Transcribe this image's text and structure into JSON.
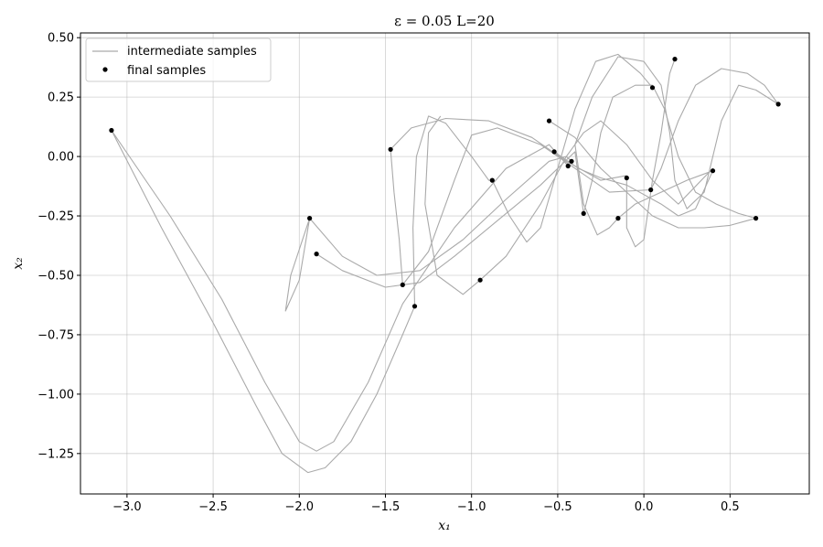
{
  "chart_data": {
    "type": "line",
    "title": "ε = 0.05 L=20",
    "xlabel": "x₁",
    "ylabel": "x₂",
    "xlim": [
      -3.27,
      0.96
    ],
    "ylim": [
      -1.42,
      0.52
    ],
    "xticks": [
      -3.0,
      -2.5,
      -2.0,
      -1.5,
      -1.0,
      -0.5,
      0.0,
      0.5
    ],
    "xtick_labels": [
      "−3.0",
      "−2.5",
      "−2.0",
      "−1.5",
      "−1.0",
      "−0.5",
      "0.0",
      "0.5"
    ],
    "yticks": [
      -1.25,
      -1.0,
      -0.75,
      -0.5,
      -0.25,
      0.0,
      0.25,
      0.5
    ],
    "ytick_labels": [
      "−1.25",
      "−1.00",
      "−0.75",
      "−0.50",
      "−0.25",
      "0.00",
      "0.25",
      "0.50"
    ],
    "grid": true,
    "legend_position": "top-left",
    "legend": [
      {
        "label": "intermediate samples",
        "kind": "line",
        "color": "#aaaaaa"
      },
      {
        "label": "final samples",
        "kind": "marker",
        "color": "#000000"
      }
    ],
    "series": [
      {
        "name": "intermediate samples",
        "kind": "line",
        "color": "#aaaaaa",
        "paths": [
          [
            [
              -3.09,
              0.11
            ],
            [
              -2.8,
              -0.3
            ],
            [
              -2.5,
              -0.7
            ],
            [
              -2.25,
              -1.05
            ],
            [
              -2.1,
              -1.25
            ],
            [
              -1.95,
              -1.33
            ],
            [
              -1.85,
              -1.31
            ],
            [
              -1.7,
              -1.2
            ],
            [
              -1.55,
              -1.0
            ],
            [
              -1.4,
              -0.75
            ],
            [
              -1.33,
              -0.63
            ]
          ],
          [
            [
              -3.09,
              0.11
            ],
            [
              -2.75,
              -0.25
            ],
            [
              -2.45,
              -0.6
            ],
            [
              -2.2,
              -0.95
            ],
            [
              -2.0,
              -1.2
            ],
            [
              -1.9,
              -1.24
            ],
            [
              -1.8,
              -1.2
            ],
            [
              -1.6,
              -0.95
            ],
            [
              -1.4,
              -0.62
            ],
            [
              -1.1,
              -0.3
            ],
            [
              -0.8,
              -0.05
            ],
            [
              -0.55,
              0.05
            ],
            [
              -0.44,
              -0.04
            ]
          ],
          [
            [
              -1.9,
              -0.41
            ],
            [
              -1.75,
              -0.48
            ],
            [
              -1.5,
              -0.55
            ],
            [
              -1.3,
              -0.53
            ],
            [
              -1.1,
              -0.42
            ],
            [
              -0.85,
              -0.27
            ],
            [
              -0.6,
              -0.12
            ],
            [
              -0.4,
              0.02
            ],
            [
              -0.35,
              -0.24
            ]
          ],
          [
            [
              -1.94,
              -0.26
            ],
            [
              -1.75,
              -0.42
            ],
            [
              -1.55,
              -0.5
            ],
            [
              -1.3,
              -0.48
            ],
            [
              -1.05,
              -0.35
            ],
            [
              -0.8,
              -0.18
            ],
            [
              -0.55,
              -0.02
            ],
            [
              -0.45,
              0.0
            ],
            [
              -0.42,
              -0.02
            ]
          ],
          [
            [
              -1.94,
              -0.26
            ],
            [
              -2.05,
              -0.5
            ],
            [
              -2.08,
              -0.65
            ],
            [
              -2.0,
              -0.52
            ],
            [
              -1.94,
              -0.26
            ]
          ],
          [
            [
              -1.47,
              0.03
            ],
            [
              -1.45,
              -0.15
            ],
            [
              -1.42,
              -0.35
            ],
            [
              -1.4,
              -0.54
            ]
          ],
          [
            [
              -1.33,
              -0.63
            ],
            [
              -1.34,
              -0.3
            ],
            [
              -1.32,
              0.0
            ],
            [
              -1.25,
              0.17
            ],
            [
              -1.15,
              0.14
            ],
            [
              -1.0,
              0.0
            ],
            [
              -0.9,
              -0.1
            ],
            [
              -0.88,
              -0.1
            ]
          ],
          [
            [
              -1.47,
              0.03
            ],
            [
              -1.35,
              0.12
            ],
            [
              -1.15,
              0.16
            ],
            [
              -0.9,
              0.15
            ],
            [
              -0.65,
              0.08
            ],
            [
              -0.45,
              -0.02
            ],
            [
              -0.25,
              -0.1
            ],
            [
              -0.1,
              -0.08
            ]
          ],
          [
            [
              -1.4,
              -0.54
            ],
            [
              -1.25,
              -0.4
            ],
            [
              -1.1,
              -0.1
            ],
            [
              -1.0,
              0.09
            ],
            [
              -0.85,
              0.12
            ],
            [
              -0.6,
              0.05
            ],
            [
              -0.4,
              -0.05
            ],
            [
              -0.2,
              -0.15
            ],
            [
              0.04,
              -0.14
            ]
          ],
          [
            [
              -0.95,
              -0.52
            ],
            [
              -0.8,
              -0.42
            ],
            [
              -0.6,
              -0.2
            ],
            [
              -0.45,
              0.0
            ],
            [
              -0.35,
              0.1
            ],
            [
              -0.25,
              0.15
            ],
            [
              -0.1,
              0.05
            ],
            [
              0.05,
              -0.1
            ],
            [
              0.2,
              -0.2
            ],
            [
              0.4,
              -0.05
            ]
          ],
          [
            [
              -0.95,
              -0.52
            ],
            [
              -1.05,
              -0.58
            ],
            [
              -1.2,
              -0.5
            ],
            [
              -1.27,
              -0.2
            ],
            [
              -1.25,
              0.1
            ],
            [
              -1.18,
              0.17
            ]
          ],
          [
            [
              -0.88,
              -0.1
            ],
            [
              -0.78,
              -0.25
            ],
            [
              -0.68,
              -0.36
            ],
            [
              -0.6,
              -0.3
            ],
            [
              -0.5,
              -0.05
            ],
            [
              -0.4,
              0.2
            ],
            [
              -0.28,
              0.4
            ],
            [
              -0.15,
              0.43
            ],
            [
              -0.02,
              0.35
            ],
            [
              0.05,
              0.29
            ]
          ],
          [
            [
              -0.55,
              0.15
            ],
            [
              -0.4,
              0.08
            ],
            [
              -0.25,
              -0.05
            ],
            [
              -0.1,
              -0.15
            ],
            [
              0.05,
              -0.25
            ],
            [
              0.2,
              -0.3
            ],
            [
              0.35,
              -0.3
            ],
            [
              0.5,
              -0.29
            ],
            [
              0.6,
              -0.27
            ],
            [
              0.65,
              -0.26
            ]
          ],
          [
            [
              -0.52,
              0.02
            ],
            [
              -0.38,
              -0.05
            ],
            [
              -0.25,
              -0.09
            ],
            [
              -0.1,
              -0.12
            ],
            [
              0.1,
              -0.2
            ],
            [
              0.2,
              -0.25
            ],
            [
              0.3,
              -0.22
            ],
            [
              0.4,
              -0.06
            ]
          ],
          [
            [
              -0.35,
              -0.24
            ],
            [
              -0.3,
              -0.1
            ],
            [
              -0.25,
              0.1
            ],
            [
              -0.18,
              0.25
            ],
            [
              -0.05,
              0.3
            ],
            [
              0.05,
              0.3
            ],
            [
              0.12,
              0.2
            ],
            [
              0.2,
              0.0
            ],
            [
              0.3,
              -0.15
            ],
            [
              0.42,
              -0.2
            ],
            [
              0.55,
              -0.24
            ],
            [
              0.65,
              -0.26
            ]
          ],
          [
            [
              -0.15,
              -0.26
            ],
            [
              -0.2,
              -0.3
            ],
            [
              -0.27,
              -0.33
            ],
            [
              -0.35,
              -0.2
            ],
            [
              -0.4,
              0.05
            ],
            [
              -0.3,
              0.25
            ],
            [
              -0.15,
              0.42
            ],
            [
              0.0,
              0.4
            ],
            [
              0.1,
              0.3
            ],
            [
              0.15,
              0.1
            ],
            [
              0.18,
              -0.1
            ],
            [
              0.25,
              -0.22
            ],
            [
              0.35,
              -0.15
            ],
            [
              0.45,
              0.15
            ],
            [
              0.55,
              0.3
            ],
            [
              0.65,
              0.28
            ],
            [
              0.78,
              0.22
            ]
          ],
          [
            [
              -0.1,
              -0.09
            ],
            [
              -0.1,
              -0.3
            ],
            [
              -0.05,
              -0.38
            ],
            [
              0.0,
              -0.35
            ],
            [
              0.05,
              -0.1
            ],
            [
              0.1,
              0.1
            ],
            [
              0.15,
              0.35
            ],
            [
              0.18,
              0.41
            ]
          ],
          [
            [
              0.04,
              -0.14
            ],
            [
              0.1,
              -0.05
            ],
            [
              0.2,
              0.15
            ],
            [
              0.3,
              0.3
            ],
            [
              0.45,
              0.37
            ],
            [
              0.6,
              0.35
            ],
            [
              0.7,
              0.3
            ],
            [
              0.78,
              0.22
            ]
          ],
          [
            [
              -0.15,
              -0.26
            ],
            [
              -0.05,
              -0.2
            ],
            [
              0.1,
              -0.15
            ],
            [
              0.25,
              -0.1
            ],
            [
              0.4,
              -0.06
            ]
          ]
        ]
      },
      {
        "name": "final samples",
        "kind": "scatter",
        "color": "#000000",
        "points": [
          [
            -3.09,
            0.11
          ],
          [
            -1.47,
            0.03
          ],
          [
            -1.94,
            -0.26
          ],
          [
            -1.9,
            -0.41
          ],
          [
            -1.4,
            -0.54
          ],
          [
            -1.33,
            -0.63
          ],
          [
            -0.95,
            -0.52
          ],
          [
            -0.88,
            -0.1
          ],
          [
            -0.55,
            0.15
          ],
          [
            -0.52,
            0.02
          ],
          [
            -0.44,
            -0.04
          ],
          [
            -0.42,
            -0.02
          ],
          [
            -0.35,
            -0.24
          ],
          [
            -0.15,
            -0.26
          ],
          [
            -0.1,
            -0.09
          ],
          [
            0.04,
            -0.14
          ],
          [
            0.05,
            0.29
          ],
          [
            0.18,
            0.41
          ],
          [
            0.4,
            -0.06
          ],
          [
            0.65,
            -0.26
          ],
          [
            0.78,
            0.22
          ]
        ]
      }
    ]
  }
}
